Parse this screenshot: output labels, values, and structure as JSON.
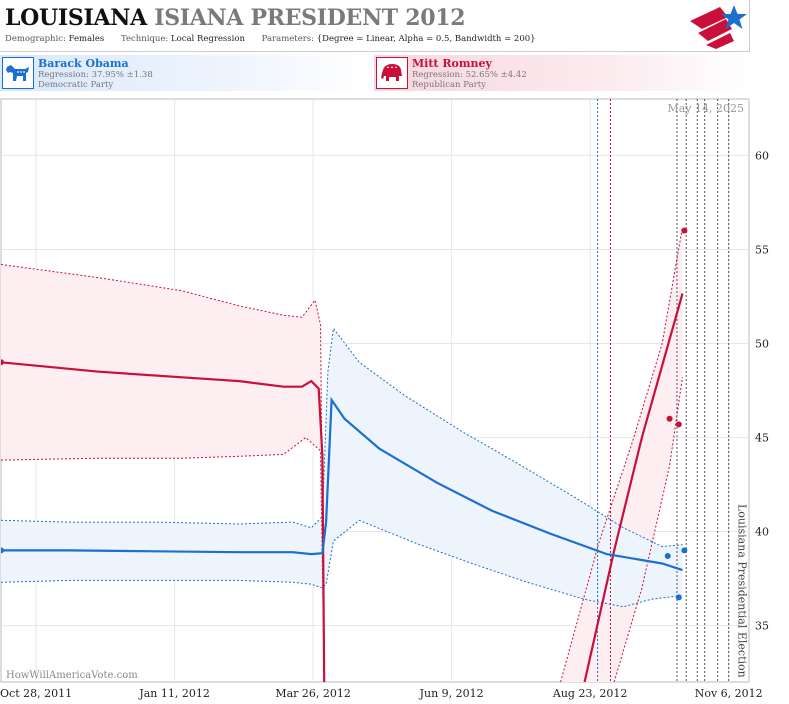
{
  "header": {
    "title_part1": "LOUISIANA",
    "title_part2": "ISIANA PRESIDENT 2012",
    "demographic_label": "Demographic:",
    "demographic_value": "Females",
    "technique_label": "Technique:",
    "technique_value": "Local Regression",
    "parameters_label": "Parameters:",
    "parameters_value": "{Degree = Linear, Alpha = 0.5, Bandwidth = 200}"
  },
  "colors": {
    "dem": "#1a6fd0",
    "rep": "#c8103a",
    "dem_band": "#eef4fb",
    "rep_band": "#fdeef2"
  },
  "candidates": {
    "dem": {
      "name": "Barack Obama",
      "regression": "Regression: 37.95% ±1.38",
      "party": "Democratic Party",
      "icon": "donkey-icon"
    },
    "rep": {
      "name": "Mitt Romney",
      "regression": "Regression: 52.65% ±4.42",
      "party": "Republican Party",
      "icon": "elephant-icon"
    }
  },
  "chart_data": {
    "type": "line",
    "xlim": [
      "2011-10-09",
      "2012-11-17"
    ],
    "ylim": [
      32,
      63
    ],
    "x_ticks": [
      {
        "date": "2011-10-28",
        "label": "Oct 28, 2011"
      },
      {
        "date": "2012-01-11",
        "label": "Jan 11, 2012"
      },
      {
        "date": "2012-03-26",
        "label": "Mar 26, 2012"
      },
      {
        "date": "2012-06-09",
        "label": "Jun 9, 2012"
      },
      {
        "date": "2012-08-23",
        "label": "Aug 23, 2012"
      },
      {
        "date": "2012-11-06",
        "label": "Nov 6, 2012"
      }
    ],
    "y_ticks": [
      35,
      40,
      45,
      50,
      55,
      60
    ],
    "current_date_label": "May 14, 2025",
    "election_label": "Louisiana Presidential Election",
    "election_date": "2012-11-06",
    "vlines": {
      "dem": [
        "2012-08-27"
      ],
      "rep": [
        "2012-09-03"
      ],
      "poll": [
        "2012-10-09",
        "2012-10-14",
        "2012-10-20",
        "2012-10-24",
        "2012-10-31",
        "2012-11-06"
      ]
    },
    "series": [
      {
        "name": "Barack Obama",
        "party": "dem",
        "line": [
          [
            "2011-10-09",
            39.0
          ],
          [
            "2011-11-15",
            39.0
          ],
          [
            "2012-01-01",
            38.95
          ],
          [
            "2012-02-15",
            38.9
          ],
          [
            "2012-03-15",
            38.9
          ],
          [
            "2012-03-25",
            38.8
          ],
          [
            "2012-03-31",
            38.85
          ],
          [
            "2012-04-02",
            40.5
          ],
          [
            "2012-04-05",
            47.0
          ],
          [
            "2012-04-12",
            46.0
          ],
          [
            "2012-05-01",
            44.4
          ],
          [
            "2012-06-01",
            42.6
          ],
          [
            "2012-07-01",
            41.1
          ],
          [
            "2012-08-01",
            39.9
          ],
          [
            "2012-09-01",
            38.8
          ],
          [
            "2012-10-01",
            38.3
          ],
          [
            "2012-10-12",
            37.95
          ]
        ],
        "upper": [
          [
            "2011-10-09",
            40.6
          ],
          [
            "2011-11-15",
            40.5
          ],
          [
            "2012-01-01",
            40.5
          ],
          [
            "2012-02-15",
            40.4
          ],
          [
            "2012-03-15",
            40.5
          ],
          [
            "2012-03-25",
            40.2
          ],
          [
            "2012-03-31",
            40.8
          ],
          [
            "2012-04-03",
            48.5
          ],
          [
            "2012-04-06",
            50.8
          ],
          [
            "2012-04-20",
            49.0
          ],
          [
            "2012-05-15",
            47.2
          ],
          [
            "2012-06-15",
            45.3
          ],
          [
            "2012-07-15",
            43.6
          ],
          [
            "2012-08-15",
            41.8
          ],
          [
            "2012-09-10",
            40.2
          ],
          [
            "2012-10-01",
            39.2
          ],
          [
            "2012-10-12",
            39.3
          ]
        ],
        "lower": [
          [
            "2011-10-09",
            37.3
          ],
          [
            "2011-11-15",
            37.4
          ],
          [
            "2012-01-01",
            37.4
          ],
          [
            "2012-02-15",
            37.4
          ],
          [
            "2012-03-15",
            37.3
          ],
          [
            "2012-03-25",
            37.2
          ],
          [
            "2012-03-31",
            37.0
          ],
          [
            "2012-04-02",
            37.2
          ],
          [
            "2012-04-06",
            39.5
          ],
          [
            "2012-04-20",
            40.6
          ],
          [
            "2012-05-20",
            39.4
          ],
          [
            "2012-06-20",
            38.3
          ],
          [
            "2012-07-20",
            37.3
          ],
          [
            "2012-08-20",
            36.4
          ],
          [
            "2012-09-10",
            36.0
          ],
          [
            "2012-09-25",
            36.4
          ],
          [
            "2012-10-12",
            36.6
          ]
        ],
        "points": [
          [
            "2012-10-04",
            38.7
          ],
          [
            "2012-10-10",
            36.5
          ],
          [
            "2012-10-13",
            39.0
          ]
        ]
      },
      {
        "name": "Mitt Romney",
        "party": "rep",
        "line": [
          [
            "2011-10-09",
            49.0
          ],
          [
            "2011-12-01",
            48.5
          ],
          [
            "2012-01-15",
            48.2
          ],
          [
            "2012-02-15",
            48.0
          ],
          [
            "2012-03-10",
            47.7
          ],
          [
            "2012-03-20",
            47.7
          ],
          [
            "2012-03-25",
            48.0
          ],
          [
            "2012-03-29",
            47.6
          ],
          [
            "2012-03-31",
            44.0
          ],
          [
            "2012-04-01",
            32.0
          ]
        ],
        "line2": [
          [
            "2012-08-20",
            32.0
          ],
          [
            "2012-09-05",
            39.0
          ],
          [
            "2012-09-20",
            45.0
          ],
          [
            "2012-10-12",
            52.65
          ]
        ],
        "upper": [
          [
            "2011-10-09",
            54.2
          ],
          [
            "2011-12-01",
            53.5
          ],
          [
            "2012-01-15",
            52.8
          ],
          [
            "2012-02-15",
            52.0
          ],
          [
            "2012-03-10",
            51.5
          ],
          [
            "2012-03-20",
            51.4
          ],
          [
            "2012-03-27",
            52.3
          ],
          [
            "2012-03-30",
            51.0
          ],
          [
            "2012-04-01",
            32.0
          ]
        ],
        "lower": [
          [
            "2011-10-09",
            43.8
          ],
          [
            "2011-12-01",
            43.9
          ],
          [
            "2012-01-15",
            43.9
          ],
          [
            "2012-02-15",
            44.0
          ],
          [
            "2012-03-10",
            44.1
          ],
          [
            "2012-03-22",
            45.0
          ],
          [
            "2012-03-30",
            44.3
          ],
          [
            "2012-03-31",
            38.0
          ],
          [
            "2012-04-01",
            32.0
          ]
        ],
        "upper2": [
          [
            "2012-08-07",
            32.0
          ],
          [
            "2012-08-28",
            39.5
          ],
          [
            "2012-09-15",
            44.8
          ],
          [
            "2012-10-01",
            50.0
          ],
          [
            "2012-10-12",
            56.2
          ]
        ],
        "lower2": [
          [
            "2012-09-05",
            32.0
          ],
          [
            "2012-09-20",
            37.0
          ],
          [
            "2012-10-05",
            43.5
          ],
          [
            "2012-10-12",
            48.2
          ]
        ],
        "points": [
          [
            "2012-10-05",
            46.0
          ],
          [
            "2012-10-10",
            45.7
          ],
          [
            "2012-10-13",
            56.0
          ]
        ]
      }
    ]
  },
  "footer": {
    "watermark": "HowWillAmericaVote.com"
  }
}
